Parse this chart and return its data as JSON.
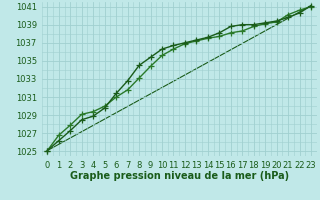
{
  "xlabel": "Graphe pression niveau de la mer (hPa)",
  "background_color": "#c0e8e8",
  "grid_color": "#a0d0d0",
  "line_color_dark": "#1a5c1a",
  "line_color_mid": "#2a7a2a",
  "ylim": [
    1024.5,
    1041.5
  ],
  "xlim": [
    -0.5,
    23.5
  ],
  "yticks": [
    1025,
    1027,
    1029,
    1031,
    1033,
    1035,
    1037,
    1039,
    1041
  ],
  "xticks": [
    0,
    1,
    2,
    3,
    4,
    5,
    6,
    7,
    8,
    9,
    10,
    11,
    12,
    13,
    14,
    15,
    16,
    17,
    18,
    19,
    20,
    21,
    22,
    23
  ],
  "series1_x": [
    0,
    1,
    2,
    3,
    4,
    5,
    6,
    7,
    8,
    9,
    10,
    11,
    12,
    13,
    14,
    15,
    16,
    17,
    18,
    19,
    20,
    21,
    22,
    23
  ],
  "series1_y": [
    1025.1,
    1026.2,
    1027.3,
    1028.5,
    1028.9,
    1029.8,
    1031.4,
    1032.8,
    1034.5,
    1035.4,
    1036.3,
    1036.7,
    1037.0,
    1037.3,
    1037.6,
    1038.1,
    1038.8,
    1039.0,
    1039.0,
    1039.2,
    1039.4,
    1039.8,
    1040.3,
    1041.1
  ],
  "series2_x": [
    0,
    1,
    2,
    3,
    4,
    5,
    6,
    7,
    8,
    9,
    10,
    11,
    12,
    13,
    14,
    15,
    16,
    17,
    18,
    19,
    20,
    21,
    22,
    23
  ],
  "series2_y": [
    1025.1,
    1026.8,
    1027.9,
    1029.1,
    1029.4,
    1030.0,
    1031.0,
    1031.8,
    1033.1,
    1034.4,
    1035.6,
    1036.3,
    1036.9,
    1037.2,
    1037.5,
    1037.7,
    1038.1,
    1038.3,
    1038.8,
    1039.1,
    1039.3,
    1040.1,
    1040.6,
    1041.0
  ],
  "series3_x": [
    0,
    23
  ],
  "series3_y": [
    1025.1,
    1041.1
  ],
  "marker": "+",
  "markersize": 4,
  "linewidth": 1.0,
  "fontsize_ticks": 6,
  "fontsize_xlabel": 7,
  "text_color": "#1a5c1a"
}
